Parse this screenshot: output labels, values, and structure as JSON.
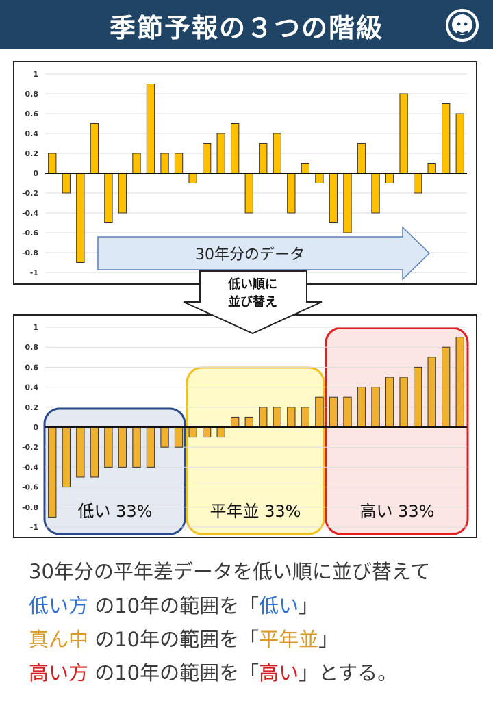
{
  "header": {
    "title": "季節予報の３つの階級",
    "logo_icon": "mascot-bowtie-icon"
  },
  "chart_data": [
    {
      "type": "bar",
      "title": "",
      "ylim": [
        -1,
        1
      ],
      "yticks": [
        "1",
        "0.8",
        "0.6",
        "0.4",
        "0.2",
        "0",
        "-0.2",
        "-0.4",
        "-0.6",
        "-0.8",
        "-1"
      ],
      "values": [
        0.2,
        -0.2,
        -0.9,
        0.5,
        -0.5,
        -0.4,
        0.2,
        0.9,
        0.2,
        0.2,
        -0.1,
        0.3,
        0.4,
        0.5,
        -0.4,
        0.3,
        0.4,
        -0.4,
        0.1,
        -0.1,
        -0.5,
        -0.6,
        0.3,
        -0.4,
        -0.1,
        0.8,
        -0.2,
        0.1,
        0.7,
        0.6
      ],
      "annotation": "30年分のデータ",
      "color": "#ffc000"
    },
    {
      "type": "bar",
      "title": "",
      "ylim": [
        -1,
        1
      ],
      "yticks": [
        "1",
        "0.8",
        "0.6",
        "0.4",
        "0.2",
        "0",
        "-0.2",
        "-0.4",
        "-0.6",
        "-0.8",
        "-1"
      ],
      "values": [
        -0.9,
        -0.6,
        -0.5,
        -0.5,
        -0.4,
        -0.4,
        -0.4,
        -0.4,
        -0.2,
        -0.2,
        -0.1,
        -0.1,
        -0.1,
        0.1,
        0.1,
        0.2,
        0.2,
        0.2,
        0.2,
        0.3,
        0.3,
        0.3,
        0.4,
        0.4,
        0.5,
        0.5,
        0.6,
        0.7,
        0.8,
        0.9
      ],
      "groups": [
        {
          "label": "低い 33%",
          "color": "#2b4a8a"
        },
        {
          "label": "平年並 33%",
          "color": "#f2c01e"
        },
        {
          "label": "高い 33%",
          "color": "#e02020"
        }
      ],
      "color": "#f0b030"
    }
  ],
  "sort_arrow": {
    "line1": "低い順に",
    "line2": "並び替え"
  },
  "explanation": {
    "line1": "30年分の平年差データを低い順に並び替えて",
    "low_term": "低い方",
    "low_mid": " の10年の範囲を「",
    "low_val": "低い",
    "low_end": "」",
    "mid_term": "真ん中",
    "mid_mid": " の10年の範囲を「",
    "mid_val": "平年並",
    "mid_end": "」",
    "high_term": "高い方",
    "high_mid": " の10年の範囲を「",
    "high_val": "高い",
    "high_end": "」とする。"
  }
}
